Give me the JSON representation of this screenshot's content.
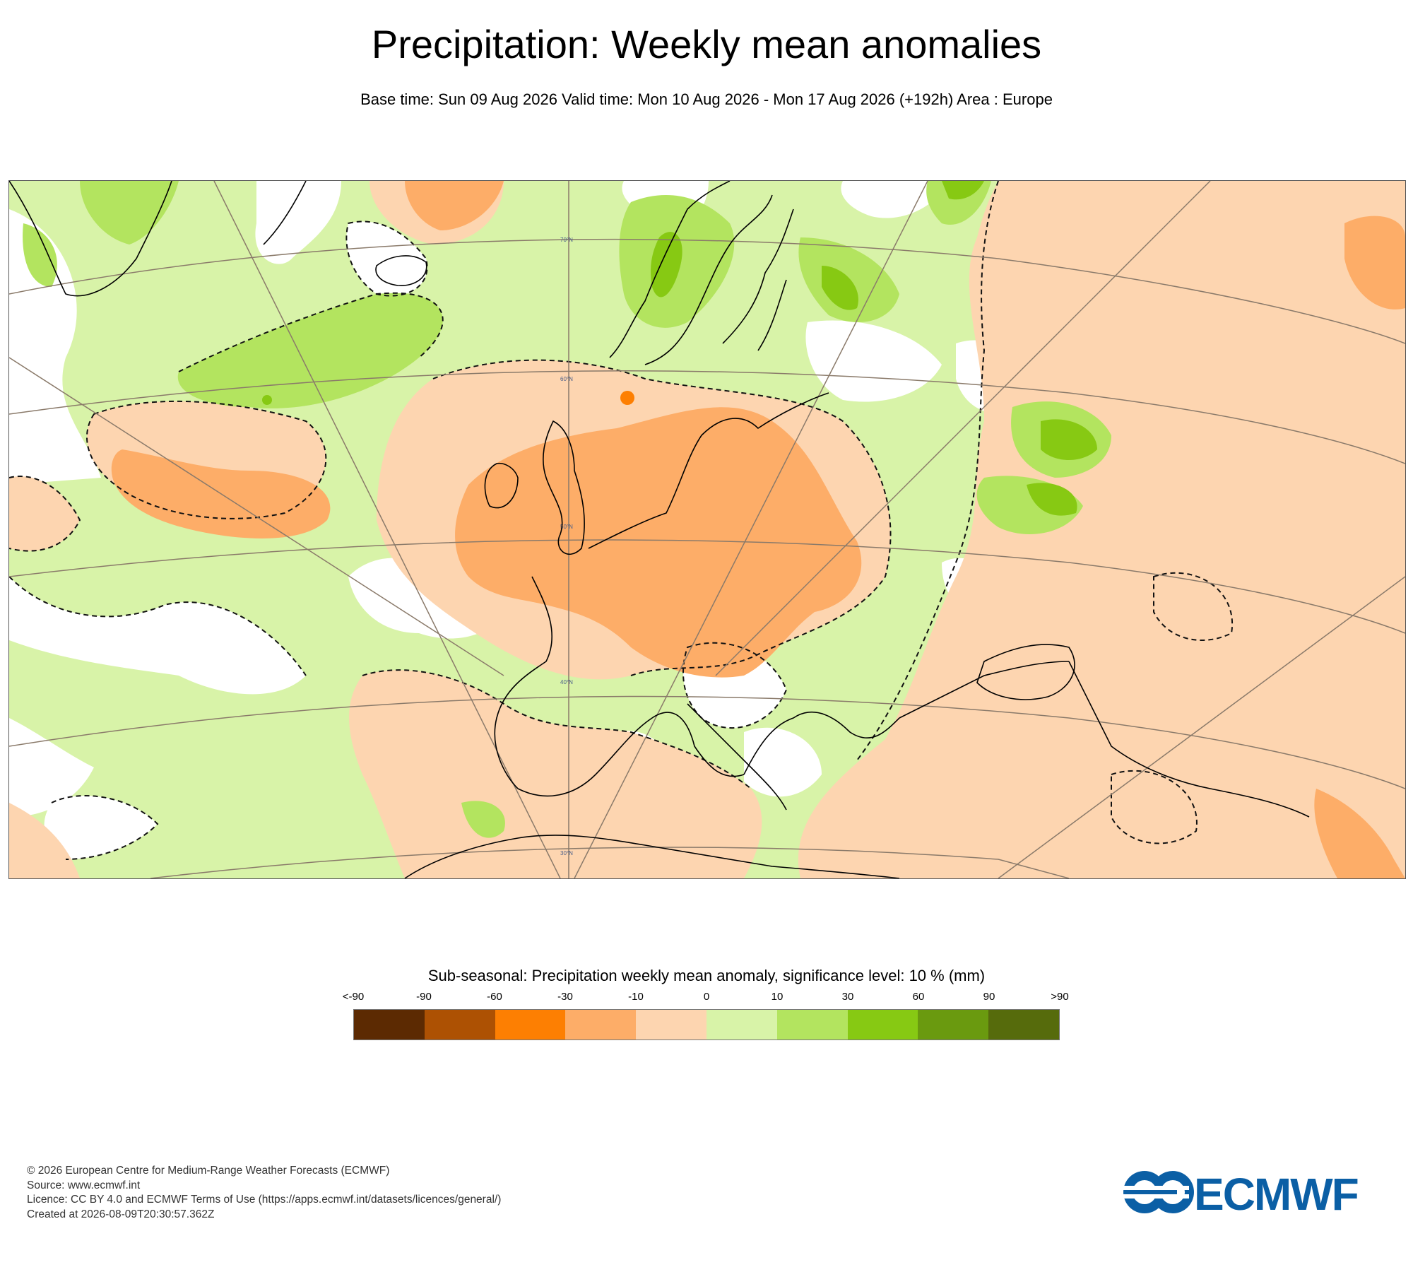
{
  "header": {
    "title": "Precipitation: Weekly mean anomalies",
    "subtitle": "Base time: Sun 09 Aug 2026 Valid time: Mon 10 Aug 2026 - Mon 17 Aug 2026 (+192h) Area : Europe"
  },
  "map": {
    "area": "Europe",
    "lat_labels": [
      "70°N",
      "60°N",
      "50°N",
      "40°N",
      "30°N"
    ],
    "colors": {
      "dry_mod": "#fdd5b0",
      "dry_strong": "#fdad68",
      "dry_extreme": "#fd7f02",
      "wet_mod": "#d8f3a8",
      "wet_strong": "#b3e45f",
      "wet_extreme": "#87c913",
      "wet_very": "#6a9a0f",
      "land_outline": "#000000",
      "graticule": "#8a7a6a"
    }
  },
  "legend": {
    "title": "Sub-seasonal: Precipitation weekly mean anomaly, significance level: 10 % (mm)",
    "ticks": [
      "<-90",
      "-90",
      "-60",
      "-30",
      "-10",
      "0",
      "10",
      "30",
      "60",
      "90",
      ">90"
    ],
    "colors": [
      "#5c2a02",
      "#ad5103",
      "#fd7f02",
      "#fdad68",
      "#fdd5b0",
      "#d8f3a8",
      "#b3e45f",
      "#87c913",
      "#6a9a0f",
      "#566b0c"
    ]
  },
  "footer": {
    "copyright": "© 2026 European Centre for Medium-Range Weather Forecasts (ECMWF)",
    "source": "Source: www.ecmwf.int",
    "licence": "Licence: CC BY 4.0 and ECMWF Terms of Use (https://apps.ecmwf.int/datasets/licences/general/)",
    "created": "Created at 2026-08-09T20:30:57.362Z",
    "logo_text": "ECMWF",
    "logo_color": "#0b5fa5"
  }
}
